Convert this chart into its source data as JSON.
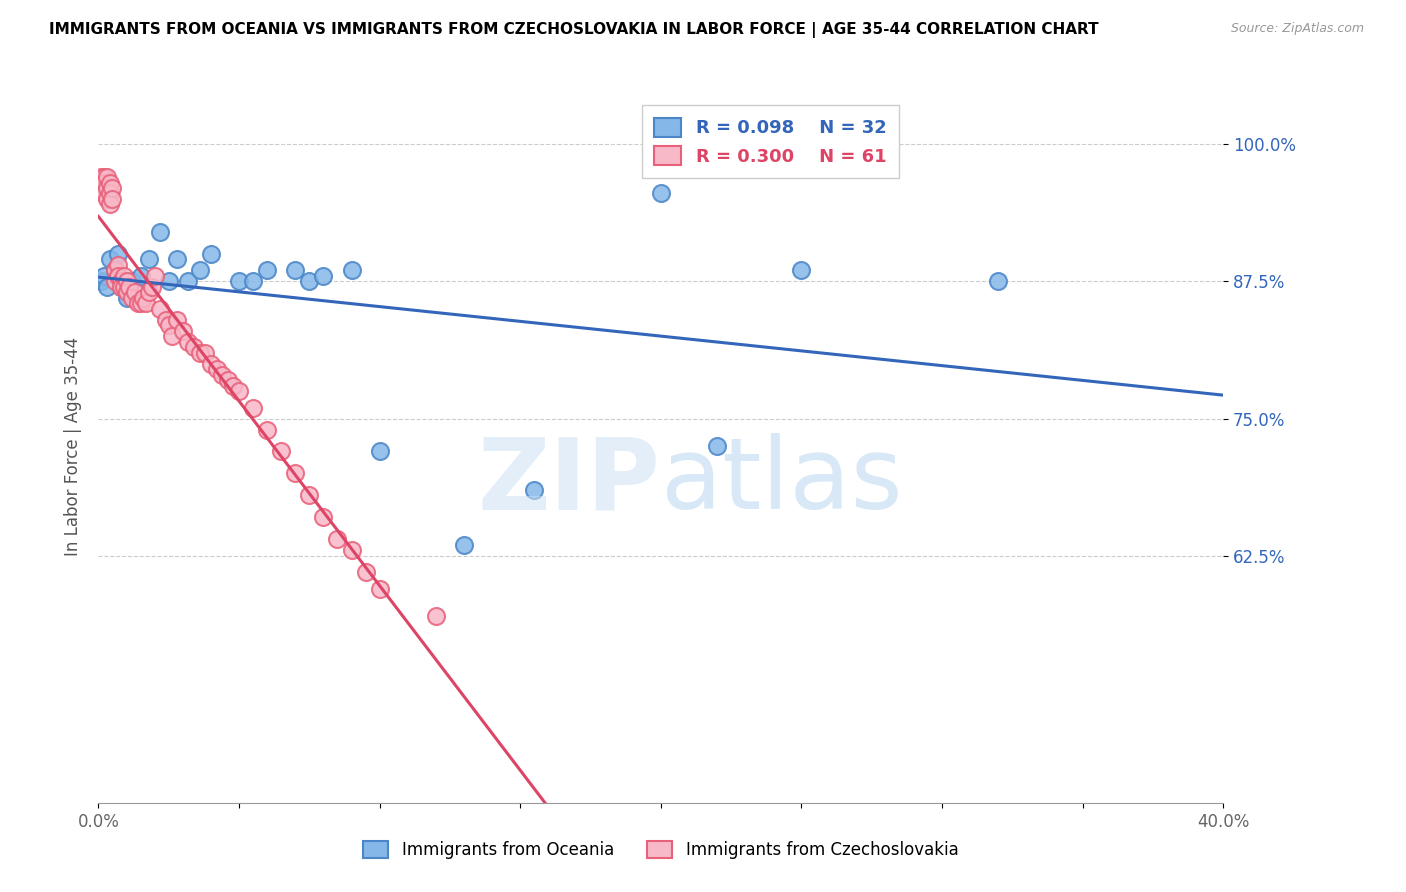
{
  "title": "IMMIGRANTS FROM OCEANIA VS IMMIGRANTS FROM CZECHOSLOVAKIA IN LABOR FORCE | AGE 35-44 CORRELATION CHART",
  "source": "Source: ZipAtlas.com",
  "ylabel": "In Labor Force | Age 35-44",
  "xlim": [
    0.0,
    0.4
  ],
  "ylim": [
    0.4,
    1.05
  ],
  "yticks": [
    0.625,
    0.75,
    0.875,
    1.0
  ],
  "ytick_labels": [
    "62.5%",
    "75.0%",
    "87.5%",
    "100.0%"
  ],
  "xticks": [
    0.0,
    0.05,
    0.1,
    0.15,
    0.2,
    0.25,
    0.3,
    0.35,
    0.4
  ],
  "xtick_labels": [
    "0.0%",
    "",
    "",
    "",
    "",
    "",
    "",
    "",
    "40.0%"
  ],
  "blue_color": "#85b8e8",
  "pink_color": "#f7b8c8",
  "blue_edge_color": "#4a86c8",
  "pink_edge_color": "#e8607a",
  "blue_line_color": "#3366bb",
  "pink_line_color": "#dd4466",
  "legend_R_blue": "R = 0.098",
  "legend_N_blue": "N = 32",
  "legend_R_pink": "R = 0.300",
  "legend_N_pink": "N = 61",
  "legend_label_blue": "Immigrants from Oceania",
  "legend_label_pink": "Immigrants from Czechoslovakia",
  "blue_x": [
    0.001,
    0.002,
    0.003,
    0.004,
    0.006,
    0.007,
    0.008,
    0.009,
    0.01,
    0.012,
    0.015,
    0.018,
    0.022,
    0.025,
    0.028,
    0.032,
    0.036,
    0.04,
    0.05,
    0.055,
    0.06,
    0.07,
    0.075,
    0.08,
    0.09,
    0.1,
    0.13,
    0.155,
    0.2,
    0.22,
    0.25,
    0.32
  ],
  "blue_y": [
    0.875,
    0.88,
    0.87,
    0.895,
    0.885,
    0.9,
    0.87,
    0.875,
    0.86,
    0.875,
    0.88,
    0.895,
    0.92,
    0.875,
    0.895,
    0.875,
    0.885,
    0.9,
    0.875,
    0.875,
    0.885,
    0.885,
    0.875,
    0.88,
    0.885,
    0.72,
    0.635,
    0.685,
    0.955,
    0.725,
    0.885,
    0.875
  ],
  "pink_x": [
    0.001,
    0.001,
    0.001,
    0.002,
    0.002,
    0.002,
    0.003,
    0.003,
    0.003,
    0.004,
    0.004,
    0.004,
    0.005,
    0.005,
    0.006,
    0.006,
    0.007,
    0.007,
    0.008,
    0.008,
    0.009,
    0.009,
    0.01,
    0.01,
    0.011,
    0.012,
    0.013,
    0.014,
    0.015,
    0.016,
    0.017,
    0.018,
    0.019,
    0.02,
    0.022,
    0.024,
    0.025,
    0.026,
    0.028,
    0.03,
    0.032,
    0.034,
    0.036,
    0.038,
    0.04,
    0.042,
    0.044,
    0.046,
    0.048,
    0.05,
    0.055,
    0.06,
    0.065,
    0.07,
    0.075,
    0.08,
    0.085,
    0.09,
    0.095,
    0.1,
    0.12
  ],
  "pink_y": [
    0.97,
    0.965,
    0.96,
    0.97,
    0.965,
    0.955,
    0.97,
    0.96,
    0.95,
    0.965,
    0.955,
    0.945,
    0.96,
    0.95,
    0.885,
    0.875,
    0.89,
    0.88,
    0.875,
    0.87,
    0.88,
    0.87,
    0.875,
    0.865,
    0.87,
    0.86,
    0.865,
    0.855,
    0.855,
    0.86,
    0.855,
    0.865,
    0.87,
    0.88,
    0.85,
    0.84,
    0.835,
    0.825,
    0.84,
    0.83,
    0.82,
    0.815,
    0.81,
    0.81,
    0.8,
    0.795,
    0.79,
    0.785,
    0.78,
    0.775,
    0.76,
    0.74,
    0.72,
    0.7,
    0.68,
    0.66,
    0.64,
    0.63,
    0.61,
    0.595,
    0.57
  ]
}
